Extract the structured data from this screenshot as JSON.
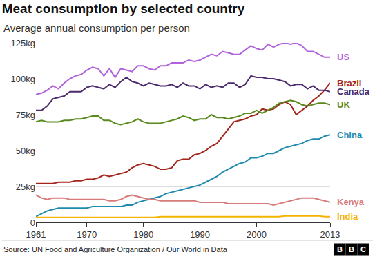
{
  "chart_data": {
    "type": "line",
    "title": "Meat consumption by selected country",
    "subtitle": "Average annual consumption per person",
    "source": "Source: UN Food and Agriculture Organization / Our World in Data",
    "logo": "BBC",
    "x": [
      1961,
      1962,
      1963,
      1964,
      1965,
      1966,
      1967,
      1968,
      1969,
      1970,
      1971,
      1972,
      1973,
      1974,
      1975,
      1976,
      1977,
      1978,
      1979,
      1980,
      1981,
      1982,
      1983,
      1984,
      1985,
      1986,
      1987,
      1988,
      1989,
      1990,
      1991,
      1992,
      1993,
      1994,
      1995,
      1996,
      1997,
      1998,
      1999,
      2000,
      2001,
      2002,
      2003,
      2004,
      2005,
      2006,
      2007,
      2008,
      2009,
      2010,
      2011,
      2012,
      2013
    ],
    "xlim": [
      1961,
      2013
    ],
    "xticks": [
      1961,
      1970,
      1980,
      1990,
      2000,
      2013
    ],
    "ylim": [
      0,
      125
    ],
    "yticks": [
      0,
      {
        "value": 25,
        "label": "25kg"
      },
      {
        "value": 50,
        "label": "50kg"
      },
      {
        "value": 75,
        "label": "75kg"
      },
      {
        "value": 100,
        "label": "100kg"
      },
      {
        "value": 125,
        "label": "125kg"
      }
    ],
    "grid": true,
    "series": [
      {
        "name": "US",
        "color": "#b062dc",
        "values": [
          89,
          90,
          92,
          95,
          93,
          97,
          100,
          102,
          103,
          106,
          108,
          107,
          102,
          107,
          101,
          107,
          106,
          105,
          109,
          109,
          107,
          106,
          109,
          109,
          111,
          111,
          111,
          113,
          112,
          113,
          115,
          117,
          116,
          119,
          118,
          117,
          117,
          120,
          123,
          121,
          120,
          124,
          122,
          124,
          125,
          124,
          125,
          123,
          119,
          119,
          117,
          115,
          115
        ]
      },
      {
        "name": "Brazil",
        "color": "#a3241b",
        "values": [
          27,
          27,
          27,
          27,
          28,
          28,
          28,
          29,
          29,
          30,
          30,
          31,
          33,
          32,
          33,
          34,
          35,
          38,
          40,
          41,
          40,
          39,
          37,
          37,
          38,
          43,
          44,
          44,
          47,
          48,
          50,
          53,
          55,
          60,
          65,
          70,
          71,
          72,
          74,
          75,
          79,
          78,
          79,
          82,
          84,
          82,
          75,
          78,
          81,
          85,
          88,
          92,
          97
        ]
      },
      {
        "name": "Canada",
        "color": "#4a2a6c",
        "values": [
          78,
          78,
          81,
          86,
          87,
          88,
          91,
          91,
          91,
          94,
          95,
          94,
          93,
          96,
          94,
          98,
          101,
          98,
          97,
          95,
          97,
          96,
          95,
          95,
          96,
          94,
          97,
          95,
          95,
          93,
          96,
          94,
          95,
          94,
          97,
          97,
          94,
          96,
          102,
          101,
          101,
          100,
          100,
          99,
          98,
          95,
          96,
          96,
          93,
          95,
          92,
          92,
          91
        ]
      },
      {
        "name": "UK",
        "color": "#5a8a1e",
        "values": [
          70,
          71,
          70,
          70,
          70,
          71,
          71,
          72,
          72,
          73,
          74,
          74,
          71,
          71,
          69,
          68,
          69,
          70,
          72,
          70,
          69,
          69,
          69,
          70,
          71,
          72,
          74,
          73,
          71,
          72,
          72,
          75,
          73,
          73,
          72,
          73,
          74,
          76,
          76,
          78,
          76,
          78,
          80,
          83,
          84,
          85,
          84,
          82,
          81,
          82,
          83,
          83,
          82
        ]
      },
      {
        "name": "China",
        "color": "#1f8aad",
        "values": [
          4,
          6,
          8,
          9,
          10,
          10,
          10,
          10,
          10,
          10,
          11,
          11,
          11,
          11,
          11,
          11,
          12,
          12,
          14,
          15,
          16,
          17,
          18,
          20,
          21,
          22,
          23,
          24,
          25,
          26,
          28,
          30,
          32,
          35,
          37,
          39,
          41,
          42,
          45,
          45,
          46,
          48,
          48,
          50,
          52,
          53,
          54,
          55,
          57,
          58,
          58,
          60,
          61
        ]
      },
      {
        "name": "Kenya",
        "color": "#d77a7a",
        "values": [
          19,
          17,
          16,
          17,
          17,
          17,
          16,
          16,
          16,
          16,
          16,
          16,
          16,
          15,
          15,
          16,
          18,
          19,
          18,
          17,
          16,
          16,
          15,
          15,
          15,
          15,
          15,
          15,
          15,
          14,
          14,
          14,
          14,
          14,
          13,
          13,
          13,
          13,
          13,
          13,
          13,
          13,
          12,
          13,
          14,
          15,
          16,
          17,
          17,
          17,
          16,
          15,
          14
        ]
      },
      {
        "name": "India",
        "color": "#f4b400",
        "values": [
          3.5,
          3.5,
          3.5,
          3.5,
          3.5,
          3.5,
          3.5,
          3.5,
          3.5,
          3.5,
          3.5,
          3.5,
          3.5,
          3.5,
          3.5,
          3.5,
          3.5,
          3.5,
          3.5,
          3.5,
          3.5,
          3.5,
          4,
          4,
          4,
          4,
          4,
          4,
          4,
          4,
          4,
          4,
          4,
          4,
          4,
          4,
          4,
          4,
          4,
          4,
          4,
          4,
          4,
          4,
          4.5,
          4.5,
          4.5,
          4.5,
          4.5,
          4.5,
          4.5,
          4,
          4
        ]
      }
    ]
  }
}
